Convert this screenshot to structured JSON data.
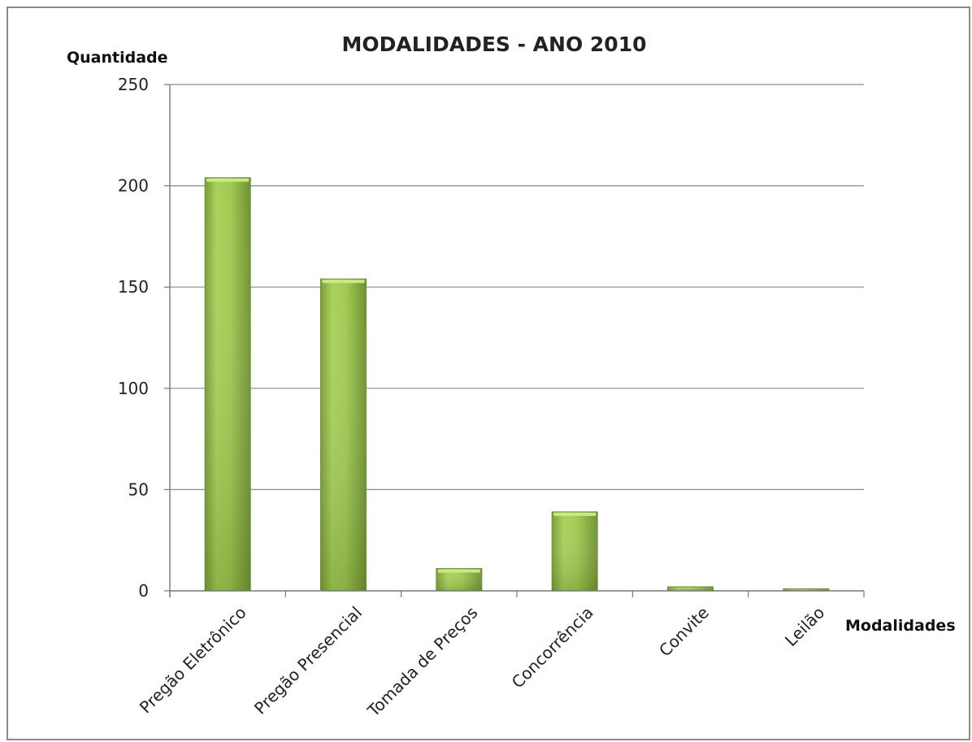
{
  "chart_data": {
    "type": "bar",
    "title": "MODALIDADES - ANO 2010",
    "xlabel": "Modalidades",
    "ylabel": "Quantidade",
    "categories": [
      "Pregão Eletrônico",
      "Pregão Presencial",
      "Tomada de Preços",
      "Concorrência",
      "Convite",
      "Leilão"
    ],
    "values": [
      204,
      154,
      11,
      39,
      2,
      1
    ],
    "ylim": [
      0,
      250
    ],
    "yticks": [
      0,
      50,
      100,
      150,
      200,
      250
    ],
    "grid": true,
    "legend": "none",
    "bar_color": "#9bc14a",
    "bar_color_dark": "#6e8f2f"
  }
}
